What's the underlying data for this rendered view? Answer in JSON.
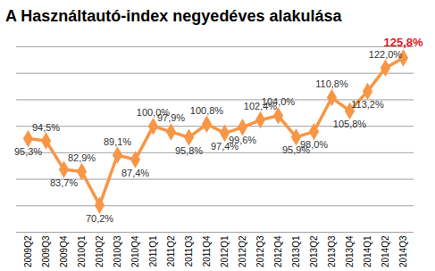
{
  "chart_data": {
    "type": "line",
    "title": "A Használtautó-index negyedéves alakulása",
    "categories": [
      "2009Q2",
      "2009Q3",
      "2009Q4",
      "2010Q1",
      "2010Q2",
      "2010Q3",
      "2010Q4",
      "2011Q1",
      "2011Q2",
      "2011Q3",
      "2011Q4",
      "2012Q1",
      "2012Q2",
      "2012Q3",
      "2012Q4",
      "2013Q1",
      "2013Q2",
      "2013Q3",
      "2013Q4",
      "2014Q1",
      "2014Q2",
      "2014Q3"
    ],
    "values": [
      95.3,
      94.5,
      83.7,
      82.9,
      70.2,
      89.1,
      87.4,
      100.0,
      97.9,
      95.8,
      100.8,
      97.4,
      99.6,
      102.4,
      104.0,
      95.9,
      98.0,
      110.8,
      105.8,
      113.2,
      122.0,
      125.8
    ],
    "value_labels": [
      "95,3%",
      "94,5%",
      "83,7%",
      "82,9%",
      "70,2%",
      "89,1%",
      "87,4%",
      "100,0%",
      "97,9%",
      "95,8%",
      "100,8%",
      "97,4%",
      "99,6%",
      "102,4%",
      "104,0%",
      "95,9%",
      "98,0%",
      "110,8%",
      "105,8%",
      "113,2%",
      "122,0%",
      "125,8%"
    ],
    "color": "#f79646",
    "marker": "diamond",
    "data_labels": true,
    "ylim": [
      60,
      130
    ],
    "yticks": [
      60,
      70,
      80,
      90,
      100,
      110,
      120,
      130
    ],
    "grid": true,
    "tick_labels": "x"
  }
}
